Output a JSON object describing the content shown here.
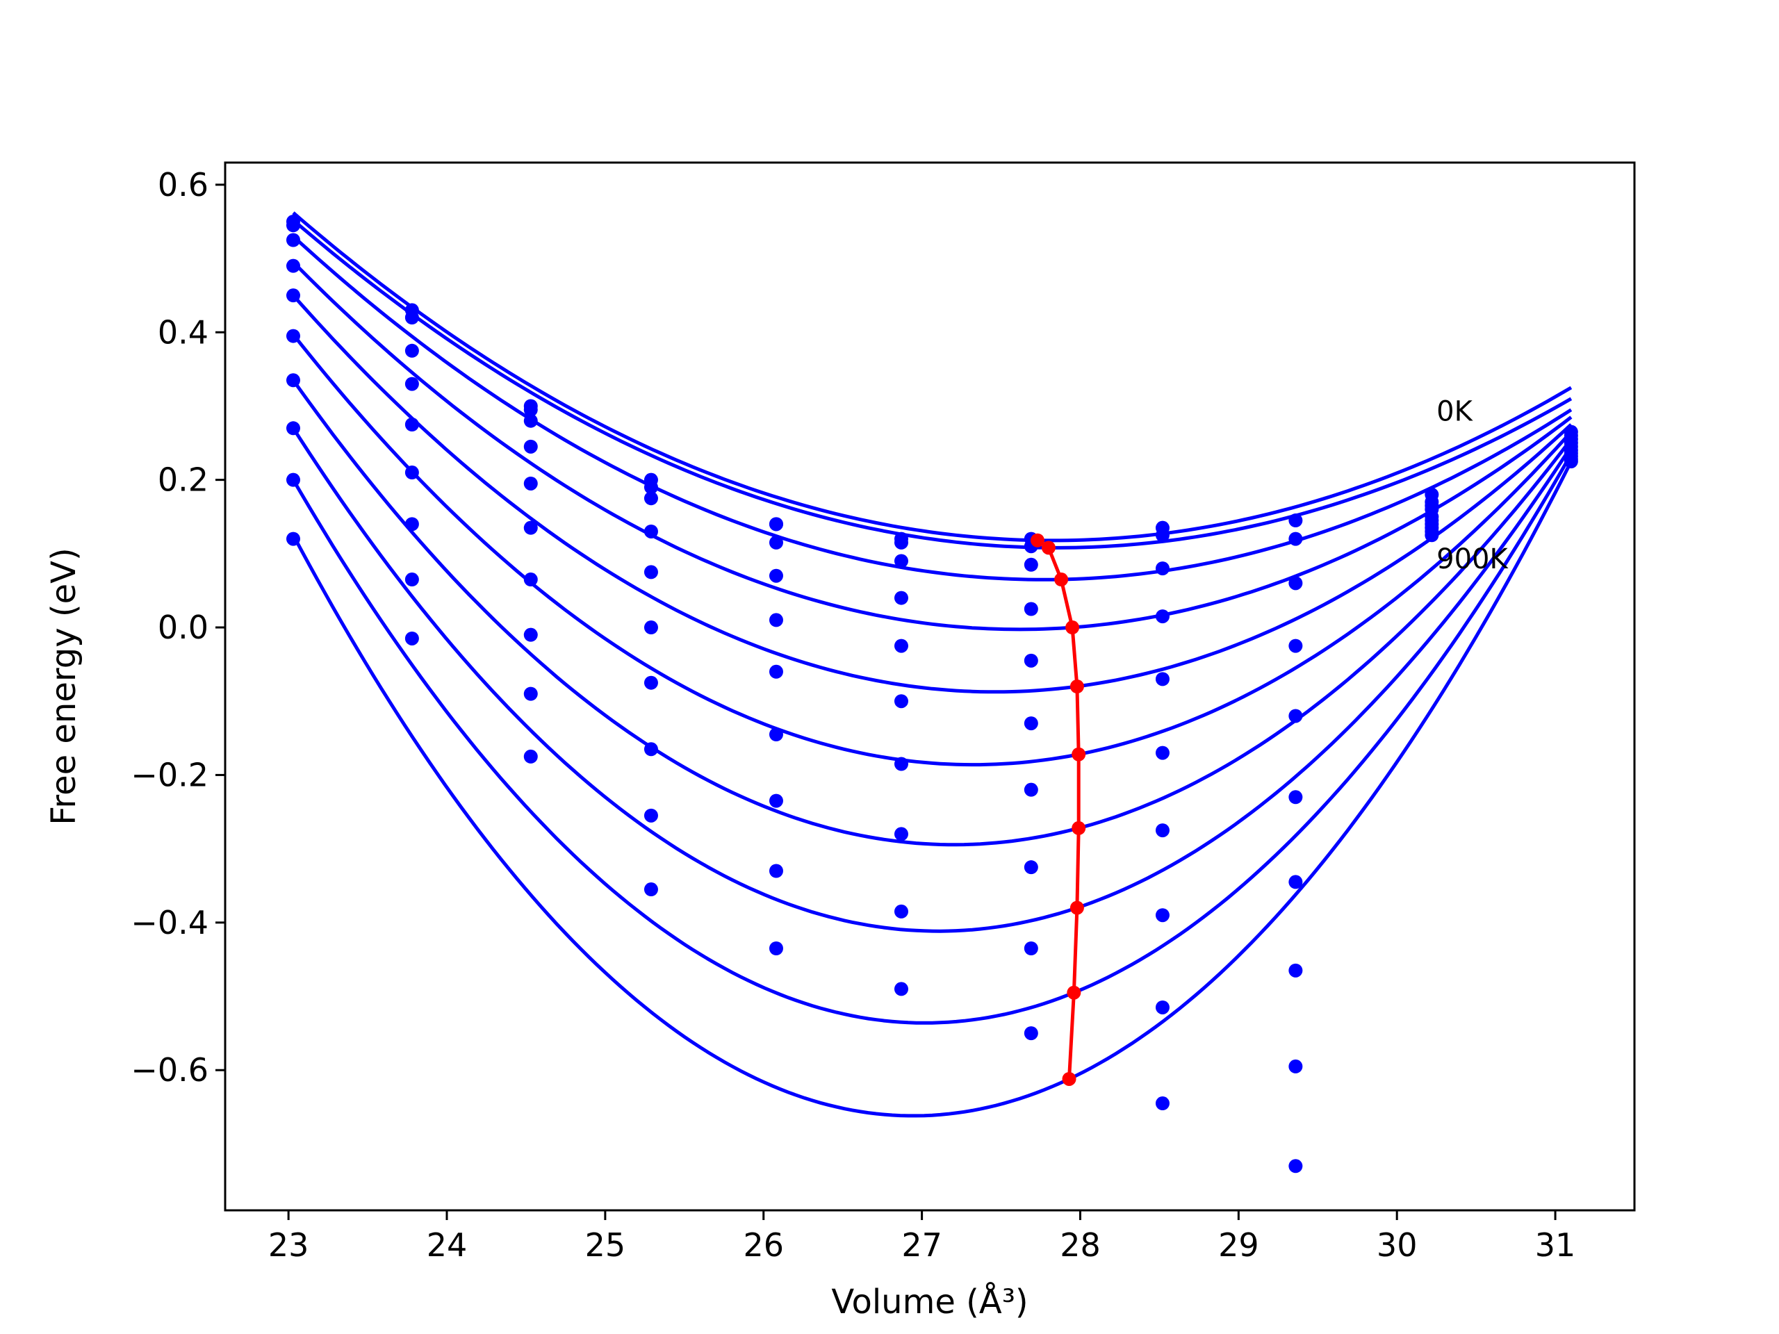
{
  "chart_data": {
    "type": "scatter",
    "xlabel": "Volume (Å³)",
    "ylabel": "Free energy (eV)",
    "xlim": [
      22.6,
      31.5
    ],
    "ylim": [
      -0.79,
      0.63
    ],
    "xticks": [
      23,
      24,
      25,
      26,
      27,
      28,
      29,
      30,
      31
    ],
    "xtick_labels": [
      "23",
      "24",
      "25",
      "26",
      "27",
      "28",
      "29",
      "30",
      "31"
    ],
    "yticks": [
      0.6,
      0.4,
      0.2,
      0.0,
      -0.2,
      -0.4,
      -0.6
    ],
    "ytick_labels": [
      "0.6",
      "0.4",
      "0.2",
      "0.0",
      "−0.2",
      "−0.4",
      "−0.6"
    ],
    "grid": false,
    "annotations": [
      {
        "text": "0K",
        "x": 30.25,
        "y": 0.28
      },
      {
        "text": "900K",
        "x": 30.25,
        "y": 0.08
      }
    ],
    "curve_color": "#0000ff",
    "minima_color": "#ff0000",
    "x_points": [
      23.03,
      23.78,
      24.53,
      25.29,
      26.08,
      26.87,
      27.69,
      28.52,
      29.36,
      30.22,
      31.1
    ],
    "series": [
      {
        "values": [
          0.55,
          0.43,
          0.3,
          0.2,
          0.14,
          0.12,
          0.12,
          0.135,
          0.145,
          0.18,
          0.225
        ],
        "min": [
          27.73,
          0.118
        ],
        "fit": [
          23.03,
          0.562,
          27.73,
          0.118,
          31.1,
          0.325
        ]
      },
      {
        "values": [
          0.545,
          0.42,
          0.295,
          0.19,
          0.14,
          0.115,
          0.11,
          0.125,
          0.12,
          0.17,
          0.228
        ],
        "min": [
          27.8,
          0.108
        ],
        "fit": [
          23.03,
          0.552,
          27.8,
          0.108,
          31.1,
          0.31
        ]
      },
      {
        "values": [
          0.525,
          0.375,
          0.28,
          0.175,
          0.115,
          0.09,
          0.085,
          0.08,
          0.06,
          0.165,
          0.232
        ],
        "min": [
          27.88,
          0.065
        ],
        "fit": [
          23.03,
          0.53,
          27.88,
          0.065,
          31.1,
          0.295
        ]
      },
      {
        "values": [
          0.49,
          0.33,
          0.245,
          0.13,
          0.07,
          0.04,
          0.025,
          0.015,
          -0.025,
          0.16,
          0.236
        ],
        "min": [
          27.95,
          0.0
        ],
        "fit": [
          23.03,
          0.495,
          27.95,
          0.0,
          31.1,
          0.285
        ]
      },
      {
        "values": [
          0.45,
          0.275,
          0.195,
          0.075,
          0.01,
          -0.025,
          -0.045,
          -0.07,
          -0.12,
          0.15,
          0.24
        ],
        "min": [
          27.98,
          -0.08
        ],
        "fit": [
          23.03,
          0.45,
          27.98,
          -0.08,
          31.1,
          0.275
        ]
      },
      {
        "values": [
          0.395,
          0.21,
          0.135,
          0.0,
          -0.06,
          -0.1,
          -0.13,
          -0.17,
          -0.23,
          0.145,
          0.245
        ],
        "min": [
          27.99,
          -0.172
        ],
        "fit": [
          23.03,
          0.397,
          27.99,
          -0.172,
          31.1,
          0.265
        ]
      },
      {
        "values": [
          0.335,
          0.14,
          0.065,
          -0.075,
          -0.145,
          -0.185,
          -0.22,
          -0.275,
          -0.345,
          0.14,
          0.25
        ],
        "min": [
          27.99,
          -0.272
        ],
        "fit": [
          23.03,
          0.335,
          27.99,
          -0.272,
          31.1,
          0.255
        ]
      },
      {
        "values": [
          0.27,
          0.065,
          -0.01,
          -0.165,
          -0.235,
          -0.28,
          -0.325,
          -0.39,
          -0.465,
          0.135,
          0.255
        ],
        "min": [
          27.98,
          -0.38
        ],
        "fit": [
          23.03,
          0.27,
          27.98,
          -0.38,
          31.1,
          0.245
        ]
      },
      {
        "values": [
          0.2,
          -0.015,
          -0.09,
          -0.255,
          -0.33,
          -0.385,
          -0.435,
          -0.515,
          -0.595,
          0.13,
          0.26
        ],
        "min": [
          27.96,
          -0.495
        ],
        "fit": [
          23.03,
          0.2,
          27.96,
          -0.495,
          31.1,
          0.235
        ]
      },
      {
        "values": [
          0.12,
          null,
          -0.175,
          -0.355,
          -0.435,
          -0.49,
          -0.55,
          -0.645,
          -0.73,
          0.125,
          0.265
        ],
        "min": [
          27.93,
          -0.612
        ],
        "fit": [
          23.03,
          0.125,
          27.93,
          -0.612,
          31.1,
          0.225
        ]
      }
    ]
  }
}
